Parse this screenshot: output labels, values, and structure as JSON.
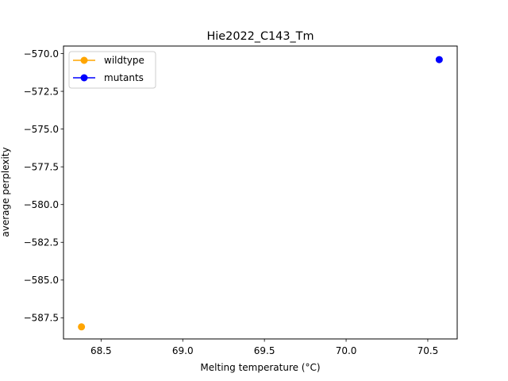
{
  "chart_data": {
    "type": "scatter",
    "title": "Hie2022_C143_Tm",
    "xlabel": "Melting temperature (°C)",
    "ylabel": "average perplexity",
    "xlim": [
      68.27,
      70.68
    ],
    "ylim": [
      -588.9,
      -569.5
    ],
    "xticks": [
      "68.5",
      "69.0",
      "69.5",
      "70.0",
      "70.5"
    ],
    "xtick_values": [
      68.5,
      69.0,
      69.5,
      70.0,
      70.5
    ],
    "yticks": [
      "−570.0",
      "−572.5",
      "−575.0",
      "−577.5",
      "−580.0",
      "−582.5",
      "−585.0",
      "−587.5"
    ],
    "ytick_values": [
      -570.0,
      -572.5,
      -575.0,
      -577.5,
      -580.0,
      -582.5,
      -585.0,
      -587.5
    ],
    "grid": false,
    "legend_position": "top-left",
    "series": [
      {
        "name": "wildtype",
        "color": "#ffa500",
        "points": [
          {
            "x": 68.38,
            "y": -588.1
          }
        ]
      },
      {
        "name": "mutants",
        "color": "#0000ff",
        "points": [
          {
            "x": 70.57,
            "y": -570.4
          }
        ]
      }
    ]
  }
}
